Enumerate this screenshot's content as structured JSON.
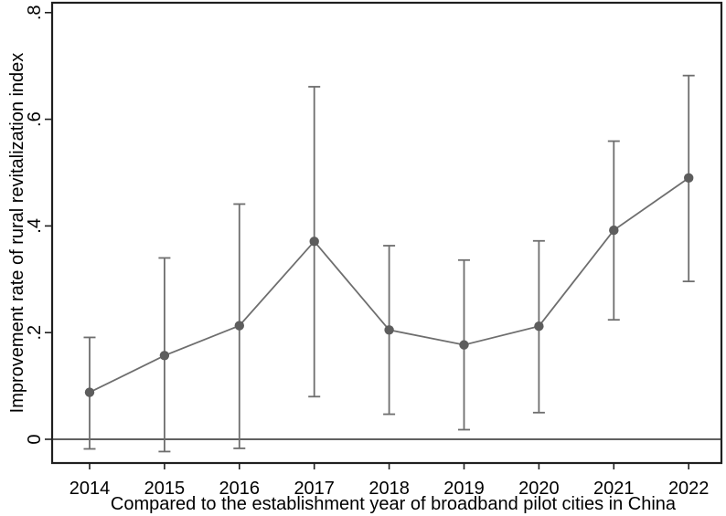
{
  "chart_data": {
    "type": "line",
    "variant": "point-estimates-with-95-percent-confidence-intervals",
    "title": "",
    "xlabel": "Compared to the establishment year of broadband pilot cities in China",
    "ylabel": "Improvement rate of rural revitalization index",
    "x_categories": [
      "2014",
      "2015",
      "2016",
      "2017",
      "2018",
      "2019",
      "2020",
      "2021",
      "2022"
    ],
    "estimates": [
      0.088,
      0.157,
      0.213,
      0.371,
      0.205,
      0.177,
      0.212,
      0.392,
      0.49
    ],
    "ci_low": [
      -0.018,
      -0.023,
      -0.017,
      0.08,
      0.047,
      0.018,
      0.05,
      0.224,
      0.296
    ],
    "ci_high": [
      0.191,
      0.34,
      0.441,
      0.661,
      0.363,
      0.336,
      0.372,
      0.559,
      0.682
    ],
    "yticks": [
      0,
      0.2,
      0.4,
      0.6,
      0.8
    ],
    "ytick_labels": [
      "0",
      ".2",
      ".4",
      ".6",
      ".8"
    ],
    "ylim": [
      -0.05,
      0.82
    ],
    "zero_line": 0,
    "grid": false,
    "legend": null,
    "colors": {
      "series": "#6e6e6e",
      "marker": "#5d5d5d",
      "axis": "#1f1f1f",
      "zero_line": "#2b2b2b",
      "text": "#000000",
      "background": "#ffffff"
    }
  }
}
